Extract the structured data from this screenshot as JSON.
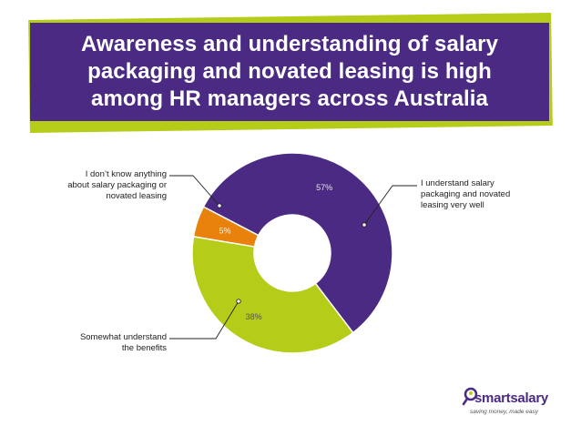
{
  "title": "Awareness and understanding of salary\npackaging and novated leasing is high\namong HR managers across Australia",
  "colors": {
    "title_bg": "#4b2a83",
    "title_accent": "#b5cc18",
    "understand": "#4b2a83",
    "somewhat": "#b5cc18",
    "dont_know": "#e8820c"
  },
  "chart_data": {
    "type": "pie",
    "donut": true,
    "title": "",
    "slices": [
      {
        "label": "I understand salary packaging and novated leasing very well",
        "value": 57,
        "value_label": "57%",
        "color": "#4b2a83"
      },
      {
        "label": "Somewhat understand the benefits",
        "value": 38,
        "value_label": "38%",
        "color": "#b5cc18"
      },
      {
        "label": "I don’t know anything about salary packaging or novated leasing",
        "value": 5,
        "value_label": "5%",
        "color": "#e8820c"
      }
    ]
  },
  "callouts": {
    "understand": "I understand salary\npackaging and novated\nleasing very well",
    "somewhat": "Somewhat understand\nthe benefits",
    "dont_know": "I don’t know anything\nabout salary packaging or\nnovated leasing"
  },
  "logo": {
    "name": "smartsalary",
    "tagline": "saving money, made easy",
    "icon": "magnifier-person-icon"
  }
}
